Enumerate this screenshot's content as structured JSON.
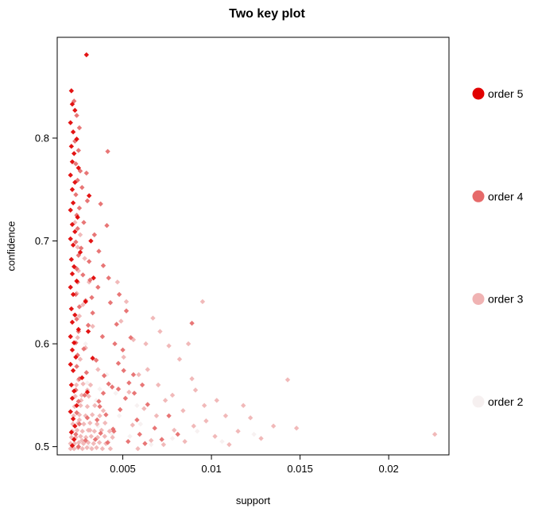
{
  "chart_data": {
    "type": "scatter",
    "title": "Two key plot",
    "xlabel": "support",
    "ylabel": "confidence",
    "xlim": [
      0.0013,
      0.0234
    ],
    "ylim": [
      0.492,
      0.898
    ],
    "grid": false,
    "point_shape": "diamond",
    "x_ticks": {
      "values": [
        0.005,
        0.01,
        0.015,
        0.02
      ],
      "labels": [
        "0.005",
        "0.01",
        "0.015",
        "0.02"
      ]
    },
    "y_ticks": {
      "values": [
        0.5,
        0.6,
        0.7,
        0.8
      ],
      "labels": [
        "0.5",
        "0.6",
        "0.7",
        "0.8"
      ]
    },
    "legend": {
      "position": "right",
      "entries": [
        {
          "label": "order 5",
          "order": 5,
          "color": "#E10000"
        },
        {
          "label": "order 4",
          "order": 4,
          "color": "#E66A6A"
        },
        {
          "label": "order 3",
          "order": 3,
          "color": "#F0B3B3"
        },
        {
          "label": "order 2",
          "order": 2,
          "color": "#F6F0F0"
        }
      ]
    },
    "points": [
      [
        0.00295,
        0.881,
        5
      ],
      [
        0.0021,
        0.846,
        5
      ],
      [
        0.00215,
        0.833,
        5
      ],
      [
        0.0023,
        0.827,
        5
      ],
      [
        0.00205,
        0.815,
        5
      ],
      [
        0.0022,
        0.806,
        5
      ],
      [
        0.0024,
        0.799,
        5
      ],
      [
        0.0021,
        0.792,
        5
      ],
      [
        0.00225,
        0.785,
        5
      ],
      [
        0.00215,
        0.777,
        5
      ],
      [
        0.0025,
        0.771,
        5
      ],
      [
        0.00205,
        0.764,
        5
      ],
      [
        0.0023,
        0.757,
        5
      ],
      [
        0.00215,
        0.75,
        5
      ],
      [
        0.0031,
        0.744,
        5
      ],
      [
        0.0022,
        0.737,
        5
      ],
      [
        0.00205,
        0.73,
        5
      ],
      [
        0.00245,
        0.723,
        5
      ],
      [
        0.00215,
        0.716,
        5
      ],
      [
        0.0023,
        0.709,
        5
      ],
      [
        0.00205,
        0.702,
        5
      ],
      [
        0.0022,
        0.696,
        5
      ],
      [
        0.0026,
        0.689,
        5
      ],
      [
        0.0021,
        0.682,
        5
      ],
      [
        0.00225,
        0.675,
        5
      ],
      [
        0.00215,
        0.668,
        5
      ],
      [
        0.0024,
        0.661,
        5
      ],
      [
        0.00205,
        0.655,
        5
      ],
      [
        0.0022,
        0.648,
        5
      ],
      [
        0.0029,
        0.641,
        5
      ],
      [
        0.0021,
        0.634,
        5
      ],
      [
        0.0023,
        0.628,
        5
      ],
      [
        0.00215,
        0.621,
        5
      ],
      [
        0.0025,
        0.614,
        5
      ],
      [
        0.00205,
        0.607,
        5
      ],
      [
        0.00225,
        0.601,
        5
      ],
      [
        0.00215,
        0.594,
        5
      ],
      [
        0.00235,
        0.587,
        5
      ],
      [
        0.00205,
        0.58,
        5
      ],
      [
        0.0022,
        0.574,
        5
      ],
      [
        0.0027,
        0.567,
        5
      ],
      [
        0.0021,
        0.56,
        5
      ],
      [
        0.00225,
        0.554,
        5
      ],
      [
        0.00215,
        0.547,
        5
      ],
      [
        0.0024,
        0.54,
        5
      ],
      [
        0.00205,
        0.534,
        5
      ],
      [
        0.0022,
        0.527,
        5
      ],
      [
        0.0023,
        0.52,
        5
      ],
      [
        0.0021,
        0.514,
        5
      ],
      [
        0.00225,
        0.507,
        5
      ],
      [
        0.00215,
        0.501,
        5
      ],
      [
        0.0032,
        0.7,
        5
      ],
      [
        0.00335,
        0.664,
        5
      ],
      [
        0.00305,
        0.612,
        5
      ],
      [
        0.0033,
        0.586,
        5
      ],
      [
        0.003,
        0.553,
        5
      ],
      [
        0.00225,
        0.836,
        4
      ],
      [
        0.0024,
        0.822,
        4
      ],
      [
        0.00255,
        0.81,
        4
      ],
      [
        0.0023,
        0.797,
        4
      ],
      [
        0.0025,
        0.788,
        4
      ],
      [
        0.00415,
        0.787,
        4
      ],
      [
        0.00235,
        0.775,
        4
      ],
      [
        0.0026,
        0.768,
        4
      ],
      [
        0.00245,
        0.759,
        4
      ],
      [
        0.0027,
        0.752,
        4
      ],
      [
        0.00235,
        0.745,
        4
      ],
      [
        0.003,
        0.739,
        4
      ],
      [
        0.00255,
        0.732,
        4
      ],
      [
        0.0024,
        0.725,
        4
      ],
      [
        0.0028,
        0.718,
        4
      ],
      [
        0.00245,
        0.712,
        4
      ],
      [
        0.0034,
        0.706,
        4
      ],
      [
        0.00235,
        0.699,
        4
      ],
      [
        0.00265,
        0.693,
        4
      ],
      [
        0.0025,
        0.686,
        4
      ],
      [
        0.0031,
        0.68,
        4
      ],
      [
        0.0024,
        0.673,
        4
      ],
      [
        0.00275,
        0.667,
        4
      ],
      [
        0.00245,
        0.66,
        4
      ],
      [
        0.0036,
        0.655,
        4
      ],
      [
        0.00235,
        0.648,
        4
      ],
      [
        0.0029,
        0.642,
        4
      ],
      [
        0.00255,
        0.636,
        4
      ],
      [
        0.0033,
        0.63,
        4
      ],
      [
        0.0024,
        0.624,
        4
      ],
      [
        0.00305,
        0.618,
        4
      ],
      [
        0.0025,
        0.612,
        4
      ],
      [
        0.00385,
        0.607,
        4
      ],
      [
        0.00235,
        0.601,
        4
      ],
      [
        0.0028,
        0.595,
        4
      ],
      [
        0.00245,
        0.589,
        4
      ],
      [
        0.0035,
        0.584,
        4
      ],
      [
        0.0024,
        0.578,
        4
      ],
      [
        0.00295,
        0.572,
        4
      ],
      [
        0.00255,
        0.566,
        4
      ],
      [
        0.0042,
        0.561,
        4
      ],
      [
        0.00235,
        0.555,
        4
      ],
      [
        0.00285,
        0.55,
        4
      ],
      [
        0.0025,
        0.544,
        4
      ],
      [
        0.0037,
        0.539,
        4
      ],
      [
        0.0024,
        0.533,
        4
      ],
      [
        0.003,
        0.528,
        4
      ],
      [
        0.00255,
        0.522,
        4
      ],
      [
        0.00445,
        0.517,
        4
      ],
      [
        0.00235,
        0.512,
        4
      ],
      [
        0.0029,
        0.506,
        4
      ],
      [
        0.0025,
        0.5,
        4
      ],
      [
        0.0048,
        0.648,
        4
      ],
      [
        0.0052,
        0.632,
        4
      ],
      [
        0.00465,
        0.619,
        4
      ],
      [
        0.00545,
        0.606,
        4
      ],
      [
        0.0043,
        0.64,
        4
      ],
      [
        0.005,
        0.594,
        4
      ],
      [
        0.00475,
        0.581,
        4
      ],
      [
        0.0056,
        0.57,
        4
      ],
      [
        0.0044,
        0.558,
        4
      ],
      [
        0.00515,
        0.547,
        4
      ],
      [
        0.00485,
        0.536,
        4
      ],
      [
        0.0058,
        0.526,
        4
      ],
      [
        0.0045,
        0.515,
        4
      ],
      [
        0.0053,
        0.505,
        4
      ],
      [
        0.0061,
        0.56,
        4
      ],
      [
        0.0064,
        0.541,
        4
      ],
      [
        0.00395,
        0.569,
        4
      ],
      [
        0.00405,
        0.531,
        4
      ],
      [
        0.00375,
        0.513,
        4
      ],
      [
        0.00415,
        0.504,
        4
      ],
      [
        0.00355,
        0.526,
        4
      ],
      [
        0.00345,
        0.507,
        4
      ],
      [
        0.0039,
        0.552,
        4
      ],
      [
        0.00365,
        0.544,
        4
      ],
      [
        0.0042,
        0.664,
        4
      ],
      [
        0.0039,
        0.676,
        4
      ],
      [
        0.00365,
        0.69,
        4
      ],
      [
        0.0041,
        0.715,
        4
      ],
      [
        0.00375,
        0.736,
        4
      ],
      [
        0.00295,
        0.766,
        4
      ],
      [
        0.00315,
        0.662,
        4
      ],
      [
        0.00325,
        0.645,
        4
      ],
      [
        0.00455,
        0.6,
        4
      ],
      [
        0.00505,
        0.574,
        4
      ],
      [
        0.00475,
        0.556,
        4
      ],
      [
        0.00535,
        0.562,
        4
      ],
      [
        0.00565,
        0.552,
        4
      ],
      [
        0.00595,
        0.512,
        4
      ],
      [
        0.00625,
        0.503,
        4
      ],
      [
        0.0068,
        0.518,
        4
      ],
      [
        0.0072,
        0.507,
        4
      ],
      [
        0.0076,
        0.53,
        4
      ],
      [
        0.0081,
        0.512,
        4
      ],
      [
        0.0089,
        0.62,
        4
      ],
      [
        0.0023,
        0.718,
        3
      ],
      [
        0.0026,
        0.706,
        3
      ],
      [
        0.00245,
        0.694,
        3
      ],
      [
        0.00285,
        0.683,
        3
      ],
      [
        0.0025,
        0.671,
        3
      ],
      [
        0.0031,
        0.66,
        3
      ],
      [
        0.0024,
        0.649,
        3
      ],
      [
        0.00275,
        0.638,
        3
      ],
      [
        0.00255,
        0.627,
        3
      ],
      [
        0.0033,
        0.617,
        3
      ],
      [
        0.00245,
        0.606,
        3
      ],
      [
        0.0029,
        0.596,
        3
      ],
      [
        0.0026,
        0.585,
        3
      ],
      [
        0.0036,
        0.575,
        3
      ],
      [
        0.0025,
        0.565,
        3
      ],
      [
        0.003,
        0.555,
        3
      ],
      [
        0.00265,
        0.545,
        3
      ],
      [
        0.0039,
        0.535,
        3
      ],
      [
        0.00255,
        0.526,
        3
      ],
      [
        0.00315,
        0.516,
        3
      ],
      [
        0.0027,
        0.506,
        3
      ],
      [
        0.0043,
        0.498,
        3
      ],
      [
        0.0047,
        0.66,
        3
      ],
      [
        0.0052,
        0.641,
        3
      ],
      [
        0.0049,
        0.622,
        3
      ],
      [
        0.0056,
        0.604,
        3
      ],
      [
        0.00505,
        0.587,
        3
      ],
      [
        0.0059,
        0.57,
        3
      ],
      [
        0.00535,
        0.553,
        3
      ],
      [
        0.0062,
        0.537,
        3
      ],
      [
        0.00555,
        0.521,
        3
      ],
      [
        0.0066,
        0.506,
        3
      ],
      [
        0.00585,
        0.498,
        3
      ],
      [
        0.007,
        0.56,
        3
      ],
      [
        0.0064,
        0.575,
        3
      ],
      [
        0.0074,
        0.545,
        3
      ],
      [
        0.0069,
        0.53,
        3
      ],
      [
        0.0079,
        0.516,
        3
      ],
      [
        0.0073,
        0.502,
        3
      ],
      [
        0.0084,
        0.535,
        3
      ],
      [
        0.0078,
        0.55,
        3
      ],
      [
        0.009,
        0.52,
        3
      ],
      [
        0.0085,
        0.505,
        3
      ],
      [
        0.0096,
        0.54,
        3
      ],
      [
        0.0091,
        0.555,
        3
      ],
      [
        0.0102,
        0.51,
        3
      ],
      [
        0.0097,
        0.525,
        3
      ],
      [
        0.0108,
        0.53,
        3
      ],
      [
        0.0103,
        0.545,
        3
      ],
      [
        0.0115,
        0.515,
        3
      ],
      [
        0.011,
        0.502,
        3
      ],
      [
        0.0122,
        0.528,
        3
      ],
      [
        0.0095,
        0.641,
        3
      ],
      [
        0.0087,
        0.6,
        3
      ],
      [
        0.0082,
        0.585,
        3
      ],
      [
        0.0076,
        0.598,
        3
      ],
      [
        0.0071,
        0.612,
        3
      ],
      [
        0.0067,
        0.625,
        3
      ],
      [
        0.0063,
        0.6,
        3
      ],
      [
        0.0089,
        0.566,
        3
      ],
      [
        0.0135,
        0.52,
        3
      ],
      [
        0.0143,
        0.565,
        3
      ],
      [
        0.0148,
        0.518,
        3
      ],
      [
        0.0226,
        0.512,
        3
      ],
      [
        0.0128,
        0.508,
        3
      ],
      [
        0.0118,
        0.54,
        3
      ],
      [
        0.00205,
        0.498,
        3
      ],
      [
        0.00225,
        0.498,
        3
      ],
      [
        0.00248,
        0.499,
        3
      ],
      [
        0.00272,
        0.498,
        3
      ],
      [
        0.00298,
        0.499,
        3
      ],
      [
        0.00325,
        0.498,
        3
      ],
      [
        0.00352,
        0.499,
        3
      ],
      [
        0.00385,
        0.498,
        3
      ],
      [
        0.00205,
        0.503,
        3
      ],
      [
        0.00228,
        0.503,
        3
      ],
      [
        0.00252,
        0.504,
        3
      ],
      [
        0.00278,
        0.503,
        3
      ],
      [
        0.00305,
        0.504,
        3
      ],
      [
        0.00335,
        0.503,
        3
      ],
      [
        0.00368,
        0.504,
        3
      ],
      [
        0.00405,
        0.503,
        3
      ],
      [
        0.0021,
        0.509,
        3
      ],
      [
        0.00235,
        0.509,
        3
      ],
      [
        0.00262,
        0.51,
        3
      ],
      [
        0.00292,
        0.509,
        3
      ],
      [
        0.00322,
        0.51,
        3
      ],
      [
        0.00358,
        0.509,
        3
      ],
      [
        0.00398,
        0.51,
        3
      ],
      [
        0.00442,
        0.509,
        3
      ],
      [
        0.00215,
        0.515,
        3
      ],
      [
        0.00242,
        0.516,
        3
      ],
      [
        0.00272,
        0.515,
        3
      ],
      [
        0.00305,
        0.516,
        3
      ],
      [
        0.0034,
        0.515,
        3
      ],
      [
        0.0038,
        0.516,
        3
      ],
      [
        0.00425,
        0.515,
        3
      ],
      [
        0.00218,
        0.522,
        3
      ],
      [
        0.00248,
        0.523,
        3
      ],
      [
        0.0028,
        0.522,
        3
      ],
      [
        0.00315,
        0.523,
        3
      ],
      [
        0.00355,
        0.522,
        3
      ],
      [
        0.004,
        0.523,
        3
      ],
      [
        0.00222,
        0.53,
        3
      ],
      [
        0.00255,
        0.531,
        3
      ],
      [
        0.0029,
        0.53,
        3
      ],
      [
        0.00328,
        0.531,
        3
      ],
      [
        0.0037,
        0.53,
        3
      ],
      [
        0.00228,
        0.539,
        3
      ],
      [
        0.00262,
        0.54,
        3
      ],
      [
        0.003,
        0.539,
        3
      ],
      [
        0.00342,
        0.54,
        3
      ],
      [
        0.00232,
        0.549,
        3
      ],
      [
        0.00268,
        0.55,
        3
      ],
      [
        0.00308,
        0.549,
        3
      ],
      [
        0.00238,
        0.56,
        3
      ],
      [
        0.00276,
        0.561,
        3
      ],
      [
        0.00318,
        0.56,
        3
      ],
      [
        0.0031,
        0.5,
        2
      ],
      [
        0.0042,
        0.505,
        2
      ],
      [
        0.0054,
        0.51,
        2
      ],
      [
        0.0066,
        0.502,
        2
      ],
      [
        0.0078,
        0.508,
        2
      ],
      [
        0.0092,
        0.515,
        2
      ],
      [
        0.0106,
        0.505,
        2
      ],
      [
        0.0124,
        0.512,
        2
      ],
      [
        0.0036,
        0.52,
        2
      ],
      [
        0.0048,
        0.53,
        2
      ],
      [
        0.006,
        0.522,
        2
      ],
      [
        0.0035,
        0.545,
        2
      ],
      [
        0.0046,
        0.552,
        2
      ],
      [
        0.0058,
        0.54,
        2
      ],
      [
        0.003,
        0.562,
        2
      ],
      [
        0.0041,
        0.57,
        2
      ],
      [
        0.0033,
        0.585,
        2
      ],
      [
        0.0029,
        0.6,
        2
      ],
      [
        0.0037,
        0.556,
        2
      ],
      [
        0.0044,
        0.512,
        2
      ]
    ]
  }
}
